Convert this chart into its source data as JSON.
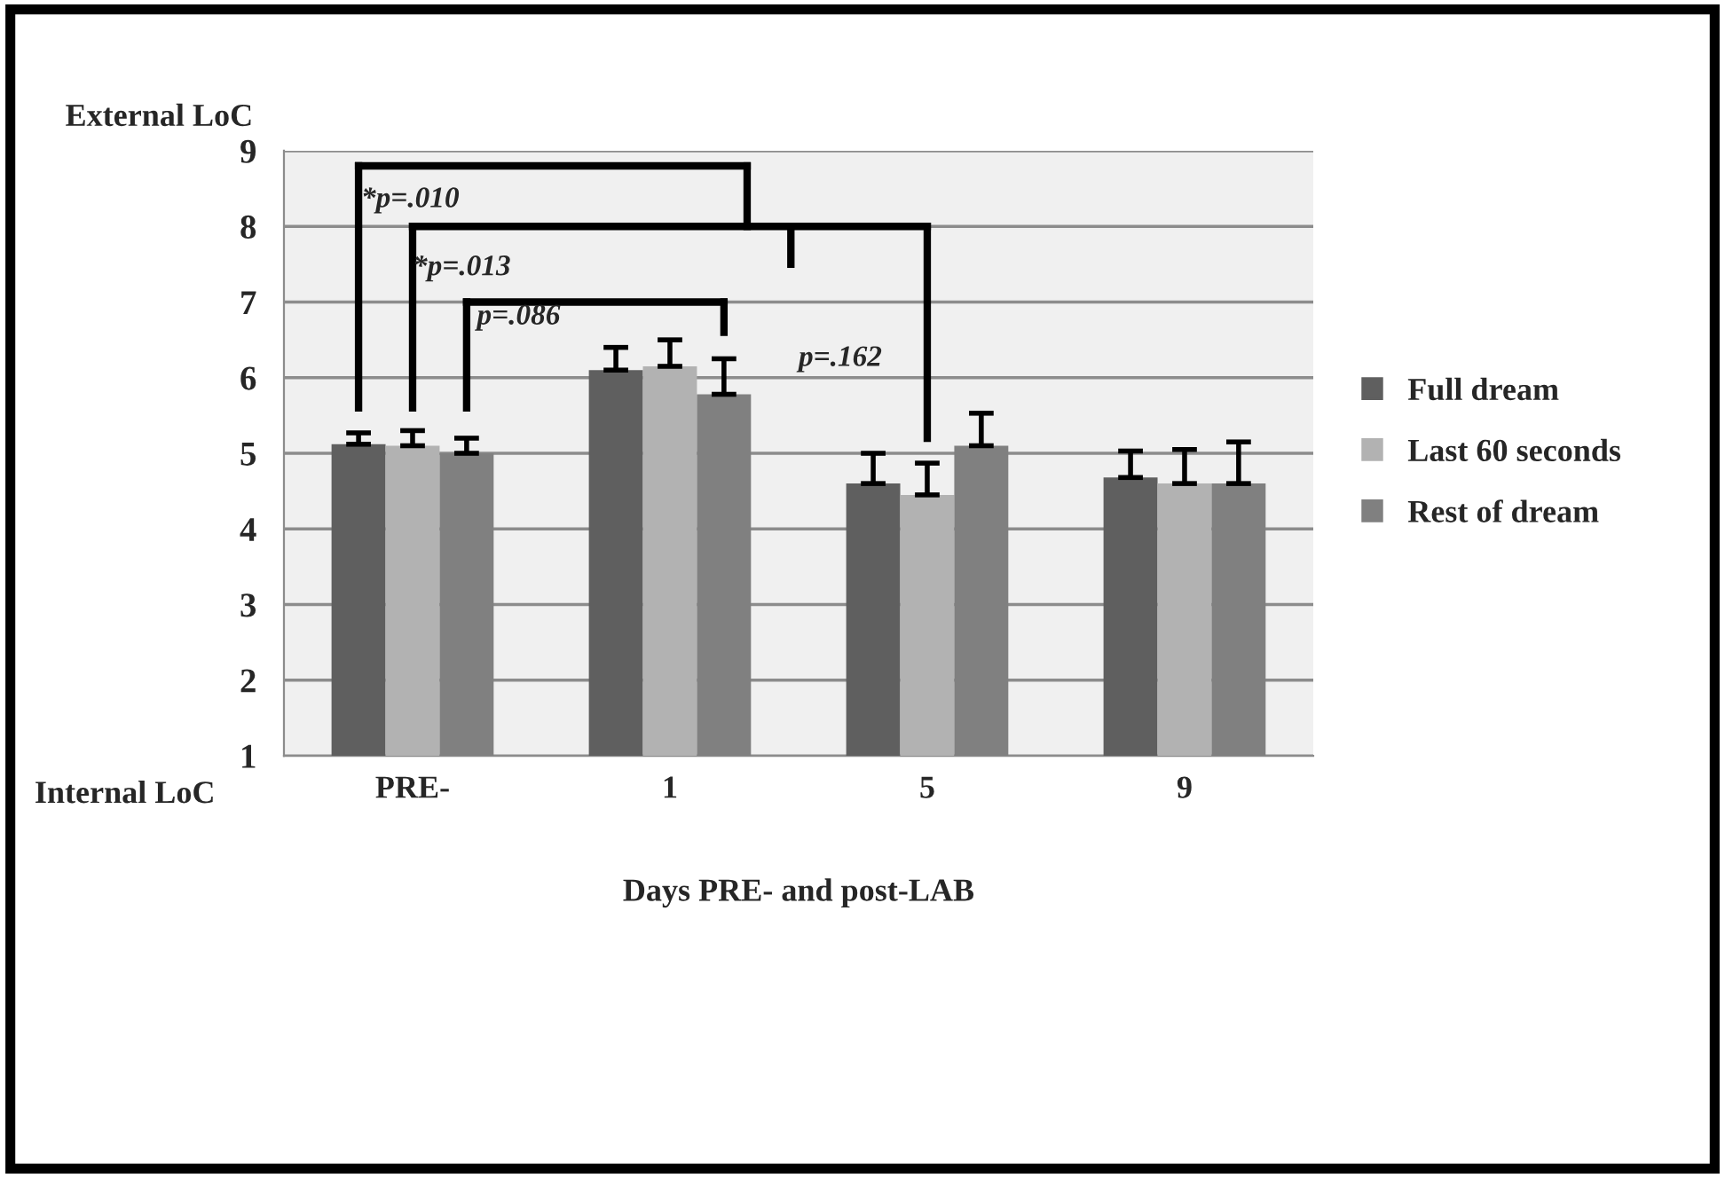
{
  "chart_data": {
    "type": "bar",
    "xlabel": "Days PRE- and post-LAB",
    "ylabel": "External LoC",
    "categories": [
      "PRE-",
      "1",
      "5",
      "9"
    ],
    "series": [
      {
        "name": "Full dream",
        "color": "#5f5f5f",
        "values": [
          5.12,
          6.1,
          4.6,
          4.68
        ],
        "errors": [
          [
            5.12,
            5.27
          ],
          [
            6.1,
            6.4
          ],
          [
            4.6,
            5.0
          ],
          [
            4.68,
            5.03
          ]
        ]
      },
      {
        "name": "Last 60 seconds",
        "color": "#b2b2b2",
        "values": [
          5.1,
          6.15,
          4.45,
          4.6
        ],
        "errors": [
          [
            5.1,
            5.3
          ],
          [
            6.15,
            6.5
          ],
          [
            4.45,
            4.87
          ],
          [
            4.6,
            5.05
          ]
        ]
      },
      {
        "name": "Rest of dream",
        "color": "#808080",
        "values": [
          5.0,
          5.78,
          5.1,
          4.6
        ],
        "errors": [
          [
            5.0,
            5.2
          ],
          [
            5.78,
            6.25
          ],
          [
            5.1,
            5.53
          ],
          [
            4.6,
            5.15
          ]
        ]
      }
    ],
    "ylim": [
      1,
      9
    ],
    "yticks": [
      1,
      2,
      3,
      4,
      5,
      6,
      7,
      8,
      9
    ],
    "grid": "y",
    "legend": "right",
    "annotations": [
      "Internal LoC",
      "*p=.010",
      "*p=.013",
      "p=.086",
      "p=.162"
    ]
  }
}
